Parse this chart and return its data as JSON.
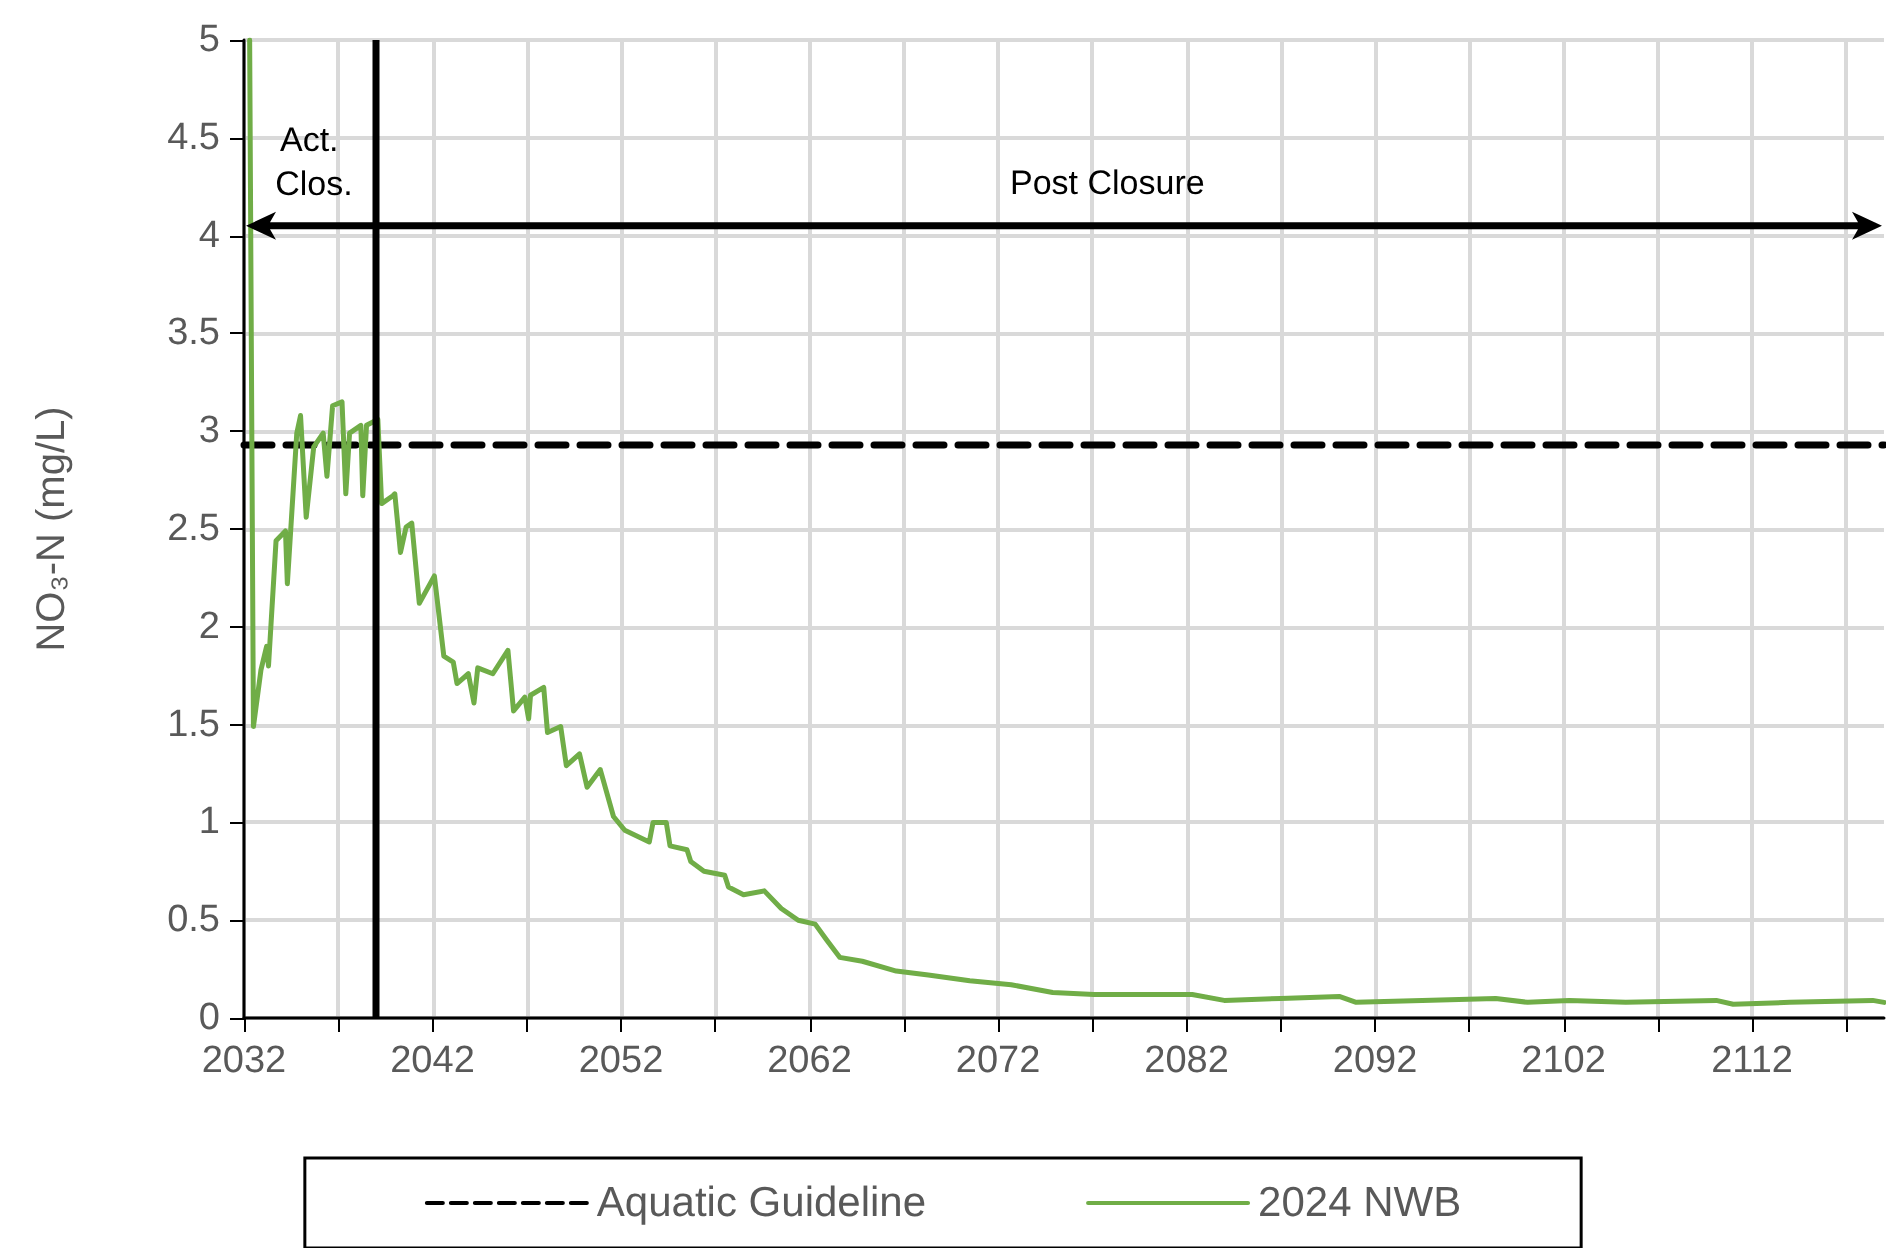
{
  "chart_data": {
    "type": "line",
    "ylabel": "NO₃-N (mg/L)",
    "xlim": [
      2032,
      2119
    ],
    "xticks": [
      2032,
      {
        "value": 2037,
        "label": null
      },
      2042,
      {
        "value": 2047,
        "label": null
      },
      2052,
      {
        "value": 2057,
        "label": null
      },
      2062,
      {
        "value": 2067,
        "label": null
      },
      2072,
      {
        "value": 2077,
        "label": null
      },
      2082,
      {
        "value": 2087,
        "label": null
      },
      2092,
      {
        "value": 2097,
        "label": null
      },
      2102,
      {
        "value": 2107,
        "label": null
      },
      2112,
      {
        "value": 2117,
        "label": null
      }
    ],
    "ylim": [
      0,
      5
    ],
    "yticks": [
      0,
      0.5,
      1,
      1.5,
      2,
      2.5,
      3,
      3.5,
      4,
      4.5,
      5
    ],
    "grid": true,
    "legend": "bottom",
    "marker": "none",
    "series": [
      {
        "name": "Aquatic Guideline",
        "color": "#000000",
        "line_style": "dashed",
        "x": [
          2032,
          2119
        ],
        "values": [
          2.93,
          2.93
        ]
      },
      {
        "name": "2024 NWB",
        "color": "#70ad47",
        "line_style": "solid",
        "x": [
          2032.3,
          2032.5,
          2032.9,
          2033.2,
          2033.3,
          2033.7,
          2034.2,
          2034.3,
          2034.8,
          2035.0,
          2035.3,
          2035.7,
          2036.2,
          2036.4,
          2036.7,
          2037.2,
          2037.4,
          2037.6,
          2038.2,
          2038.3,
          2038.5,
          2039.1,
          2039.3,
          2039.9,
          2040.0,
          2040.3,
          2040.6,
          2040.9,
          2041.3,
          2041.7,
          2042.1,
          2042.6,
          2043.1,
          2043.3,
          2043.9,
          2044.2,
          2044.4,
          2045.2,
          2046.0,
          2046.3,
          2046.9,
          2047.1,
          2047.2,
          2047.9,
          2048.1,
          2048.8,
          2049.1,
          2049.8,
          2050.2,
          2050.9,
          2051.6,
          2052.2,
          2053.5,
          2053.7,
          2054.4,
          2054.6,
          2055.5,
          2055.7,
          2056.4,
          2057.5,
          2057.7,
          2058.5,
          2059.6,
          2060.5,
          2061.4,
          2062.3,
          2062.9,
          2063.6,
          2064.8,
          2066.6,
          2068.3,
          2070.5,
          2072.7,
          2074.9,
          2077.1,
          2079.2,
          2082.3,
          2084.0,
          2087.0,
          2090.1,
          2091.0,
          2094.5,
          2098.4,
          2100.1,
          2102.3,
          2105.3,
          2110.1,
          2111.0,
          2114.0,
          2118.4,
          2119.0
        ],
        "values": [
          5.0,
          1.49,
          1.78,
          1.9,
          1.8,
          2.44,
          2.49,
          2.22,
          2.99,
          3.08,
          2.56,
          2.92,
          2.99,
          2.77,
          3.13,
          3.15,
          2.68,
          2.99,
          3.03,
          2.67,
          3.03,
          3.06,
          2.63,
          2.67,
          2.68,
          2.38,
          2.51,
          2.53,
          2.12,
          2.19,
          2.26,
          1.85,
          1.82,
          1.71,
          1.76,
          1.61,
          1.79,
          1.76,
          1.88,
          1.57,
          1.64,
          1.53,
          1.65,
          1.69,
          1.46,
          1.49,
          1.29,
          1.35,
          1.18,
          1.27,
          1.03,
          0.96,
          0.9,
          1.0,
          1.0,
          0.88,
          0.86,
          0.8,
          0.75,
          0.73,
          0.67,
          0.63,
          0.65,
          0.56,
          0.5,
          0.48,
          0.4,
          0.31,
          0.29,
          0.24,
          0.22,
          0.19,
          0.17,
          0.13,
          0.12,
          0.12,
          0.12,
          0.09,
          0.1,
          0.11,
          0.08,
          0.09,
          0.1,
          0.08,
          0.09,
          0.08,
          0.09,
          0.07,
          0.08,
          0.09,
          0.08
        ]
      }
    ],
    "ref_lines": [
      {
        "axis": "x",
        "value": 2039,
        "label": null,
        "color": "#000000",
        "line_style": "solid"
      }
    ],
    "annotations": [
      "Act. Clos.",
      "Post Closure"
    ]
  }
}
